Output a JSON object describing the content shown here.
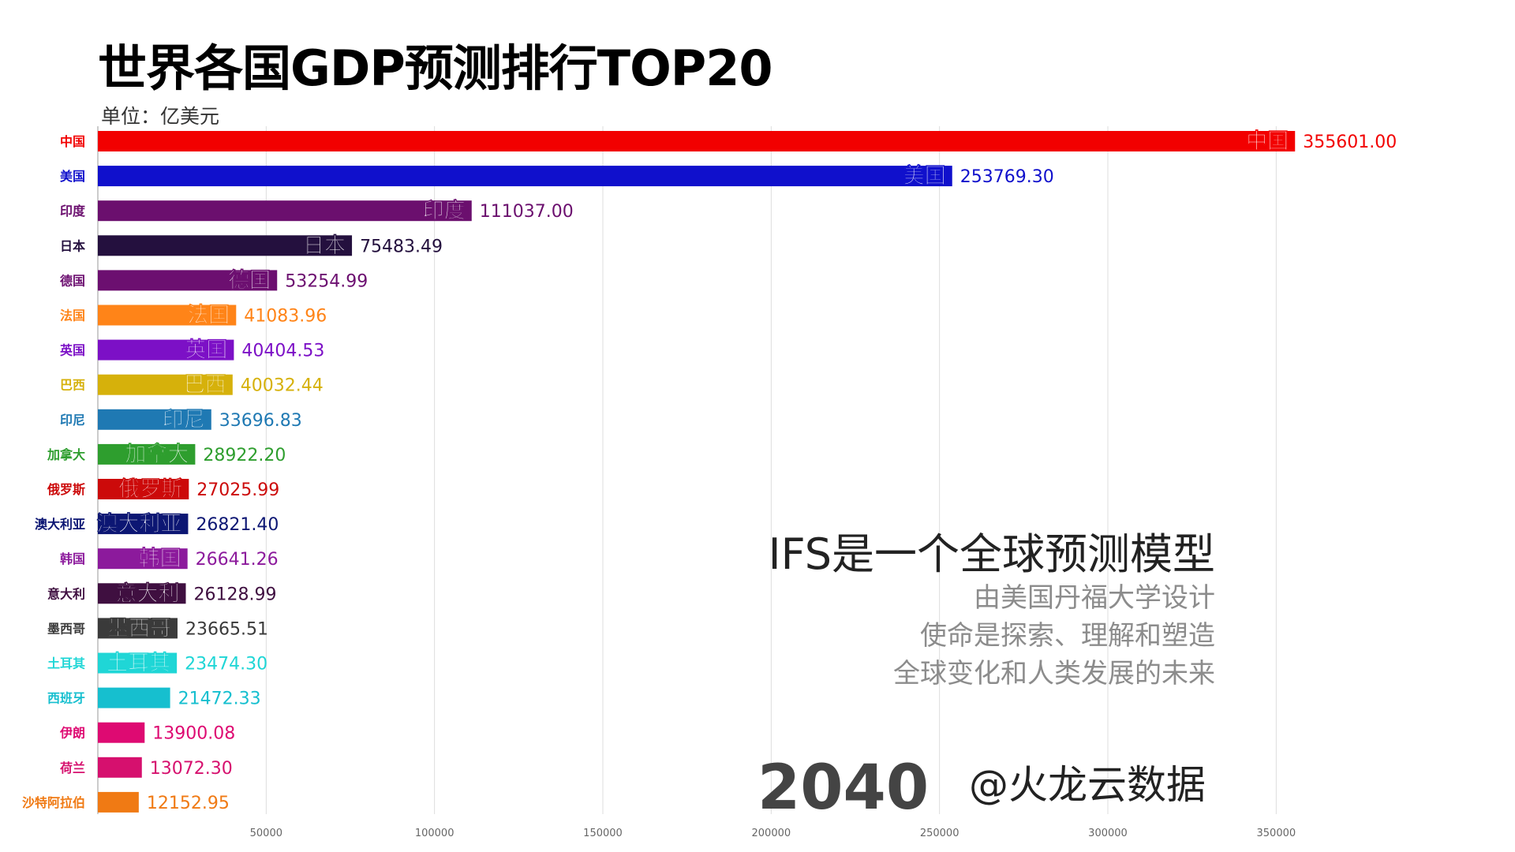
{
  "header": {
    "title": "世界各国GDP预测排行TOP20",
    "unit": "单位：亿美元"
  },
  "description": {
    "title": "IFS是一个全球预测模型",
    "lines": [
      "由美国丹福大学设计",
      "使命是探索、理解和塑造",
      "全球变化和人类发展的未来"
    ]
  },
  "year": "2040",
  "watermark": "@火龙云数据",
  "chart_data": {
    "type": "bar",
    "orientation": "horizontal",
    "title": "世界各国GDP预测排行TOP20",
    "xlabel": "",
    "ylabel": "",
    "xlim": [
      0,
      360000
    ],
    "xticks": [
      50000,
      100000,
      150000,
      200000,
      250000,
      300000,
      350000
    ],
    "tick_labels": [
      "50000",
      "100000",
      "150000",
      "200000",
      "250000",
      "300000",
      "350000"
    ],
    "grid": true,
    "categories": [
      "中国",
      "美国",
      "印度",
      "日本",
      "德国",
      "法国",
      "英国",
      "巴西",
      "印尼",
      "加拿大",
      "俄罗斯",
      "澳大利亚",
      "韩国",
      "意大利",
      "墨西哥",
      "土耳其",
      "西班牙",
      "伊朗",
      "荷兰",
      "沙特阿拉伯"
    ],
    "values": [
      355601.0,
      253769.3,
      111037.0,
      75483.49,
      53254.99,
      41083.96,
      40404.53,
      40032.44,
      33696.83,
      28922.2,
      27025.99,
      26821.4,
      26641.26,
      26128.99,
      23665.51,
      23474.3,
      21472.33,
      13900.08,
      13072.3,
      12152.95
    ],
    "value_labels": [
      "355601.00",
      "253769.30",
      "111037.00",
      "75483.49",
      "53254.99",
      "41083.96",
      "40404.53",
      "40032.44",
      "33696.83",
      "28922.20",
      "27025.99",
      "26821.40",
      "26641.26",
      "26128.99",
      "23665.51",
      "23474.30",
      "21472.33",
      "13900.08",
      "13072.30",
      "12152.95"
    ],
    "colors": [
      "#f20000",
      "#1010cc",
      "#6b0f6e",
      "#24103e",
      "#6c0f70",
      "#ff8418",
      "#7c10c6",
      "#d6b10b",
      "#1f79b3",
      "#2e9e2e",
      "#cc0a0a",
      "#0c1673",
      "#8c1a9c",
      "#3f0f40",
      "#3a3a3a",
      "#1fd6d6",
      "#16bfcf",
      "#de0a72",
      "#d6106e",
      "#f07a14"
    ],
    "inner_labels": [
      "中国",
      "美国",
      "印度",
      "日本",
      "德国",
      "法国",
      "英国",
      "巴西",
      "印尼",
      "加拿大",
      "俄罗斯",
      "澳大利亚",
      "韩国",
      "意大利",
      "墨西哥",
      "土耳其",
      "",
      "",
      "",
      ""
    ]
  }
}
